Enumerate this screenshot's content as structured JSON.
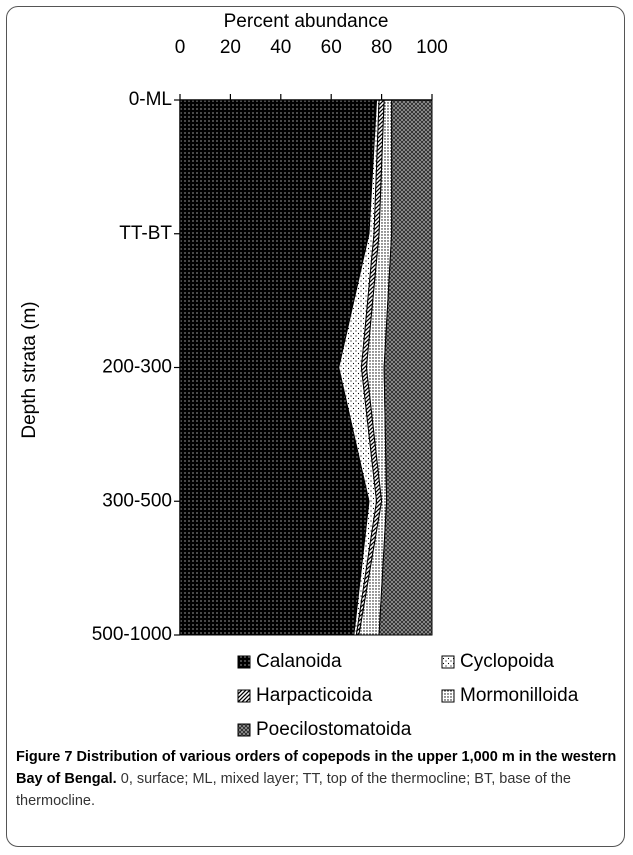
{
  "chart_data": {
    "type": "stacked_area_horizontal",
    "xlabel": "Percent abundance",
    "ylabel": "Depth strata (m)",
    "categories": [
      "0-ML",
      "TT-BT",
      "200-300",
      "300-500",
      "500-1000"
    ],
    "xlim": [
      0,
      100
    ],
    "xticks": [
      0,
      20,
      40,
      60,
      80,
      100
    ],
    "series": [
      {
        "name": "Calanoida",
        "color": "#000000",
        "values": [
          78,
          75,
          63,
          75,
          69
        ]
      },
      {
        "name": "Cyclopoida",
        "color": "#ffffff",
        "values": [
          1,
          2,
          9,
          3,
          1
        ]
      },
      {
        "name": "Harpacticoida",
        "color": "#ffffff",
        "values": [
          2,
          2,
          2,
          2,
          1
        ]
      },
      {
        "name": "Mormonilloida",
        "color": "#ffffff",
        "values": [
          3,
          5,
          7,
          2,
          8
        ]
      },
      {
        "name": "Poecilostomatoida",
        "color": "#9a9a9a",
        "values": [
          16,
          16,
          19,
          18,
          21
        ]
      }
    ]
  },
  "caption": {
    "label": "Figure 7",
    "title": "Distribution of various orders of copepods in the upper 1,000 m in the western Bay of Bengal.",
    "text": "0, surface; ML, mixed layer; TT, top of the thermocline; BT, base of the thermocline."
  }
}
